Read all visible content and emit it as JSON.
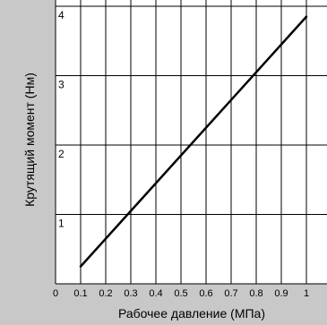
{
  "chart_data": {
    "type": "line",
    "title": "",
    "xlabel": "Рабочее давление (МПа)",
    "ylabel": "Крутящий момент (Нм)",
    "xlim": [
      0,
      1.1
    ],
    "ylim": [
      0,
      4
    ],
    "x_ticks": [
      "0",
      "0.1",
      "0.2",
      "0.3",
      "0.4",
      "0.5",
      "0.6",
      "0.7",
      "0.8",
      "0.9",
      "1"
    ],
    "y_ticks": [
      "1",
      "2",
      "3",
      "4"
    ],
    "grid": true,
    "series": [
      {
        "x": [
          0.1,
          1.0
        ],
        "y": [
          0.25,
          3.85
        ]
      }
    ]
  },
  "colors": {
    "frame_band": "#c8c8c8",
    "plot_background": "#ffffff",
    "grid": "#000000",
    "line": "#000000",
    "text": "#000000"
  }
}
